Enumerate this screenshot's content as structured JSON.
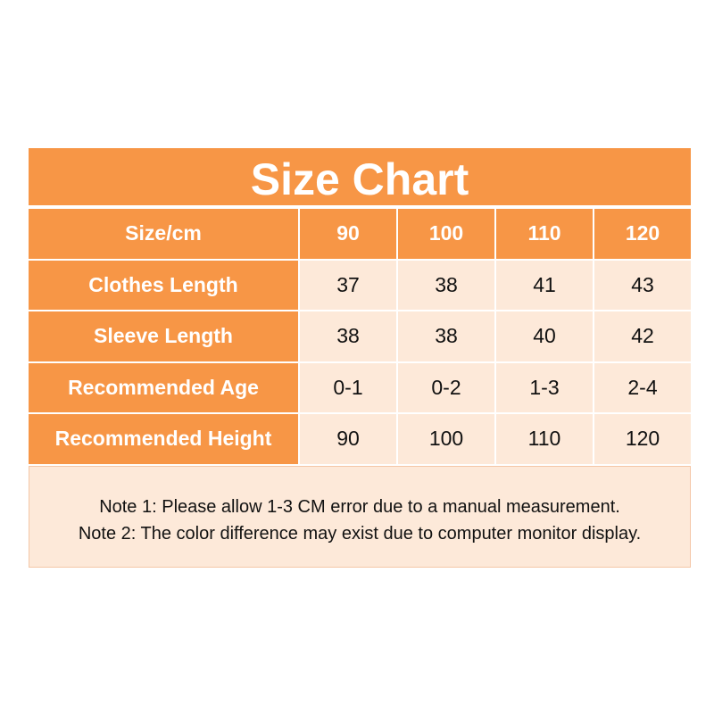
{
  "title": "Size Chart",
  "colors": {
    "header": "#F79646",
    "cell": "#FDE9D9"
  },
  "header": {
    "label": "Size/cm",
    "sizes": [
      "90",
      "100",
      "110",
      "120"
    ]
  },
  "rows": [
    {
      "label": "Clothes Length",
      "values": [
        "37",
        "38",
        "41",
        "43"
      ]
    },
    {
      "label": "Sleeve Length",
      "values": [
        "38",
        "38",
        "40",
        "42"
      ]
    },
    {
      "label": "Recommended Age",
      "values": [
        "0-1",
        "0-2",
        "1-3",
        "2-4"
      ]
    },
    {
      "label": "Recommended Height",
      "values": [
        "90",
        "100",
        "110",
        "120"
      ]
    }
  ],
  "notes": [
    "Note 1: Please allow 1-3 CM error due to a manual measurement.",
    "Note 2: The color difference may exist due to computer monitor display."
  ]
}
